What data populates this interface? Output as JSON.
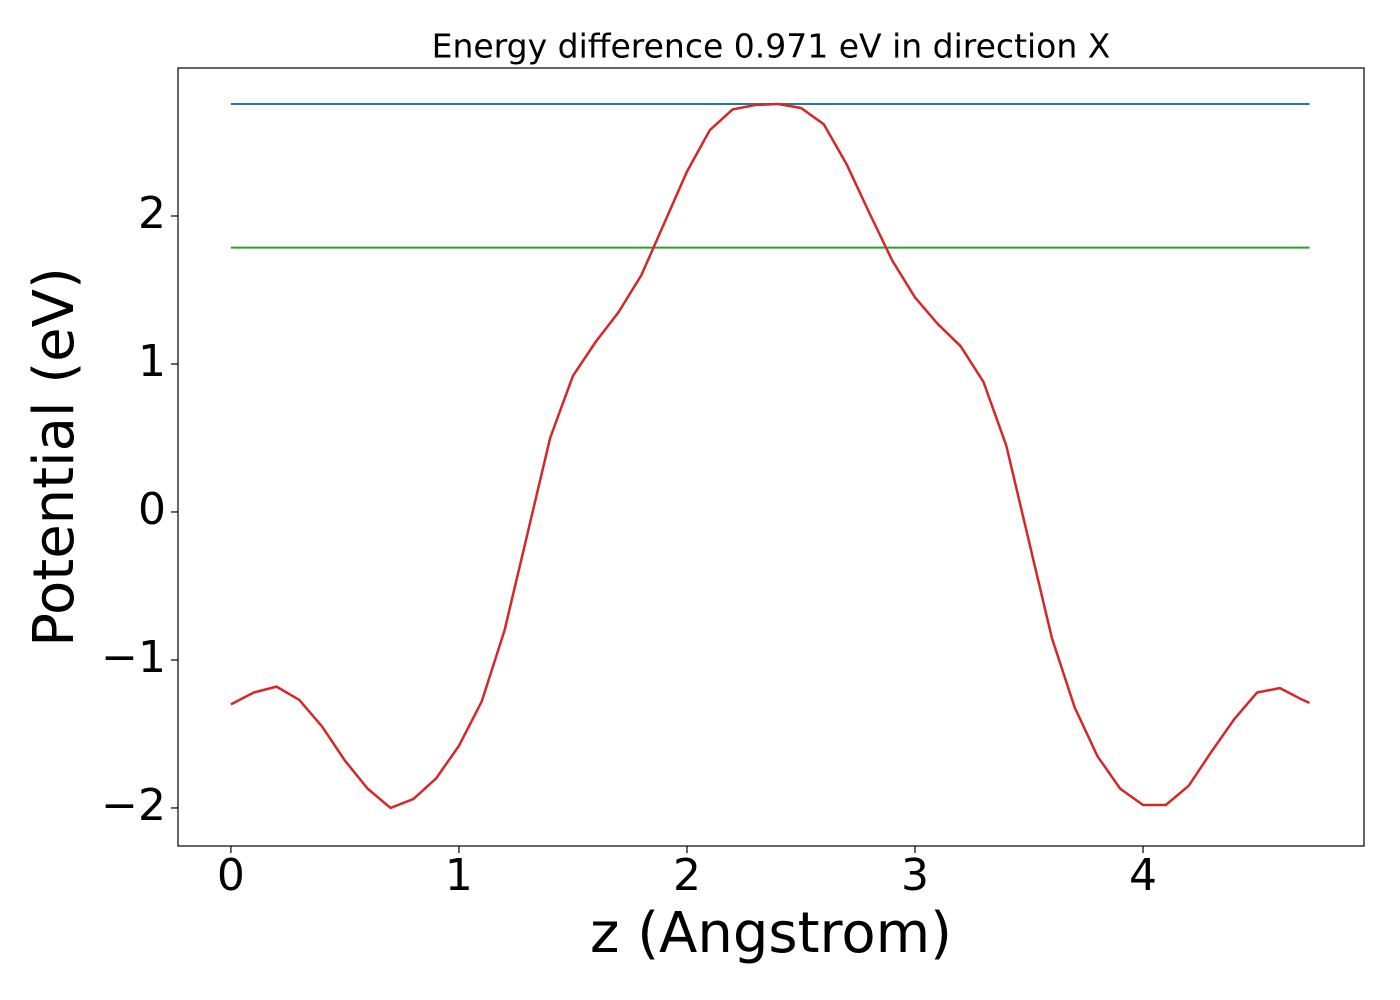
{
  "chart_data": {
    "type": "line",
    "title": "Energy difference 0.971 eV in direction X",
    "xlabel": "z (Angstrom)",
    "ylabel": "Potential (eV)",
    "xlim": [
      -0.232,
      4.969
    ],
    "ylim": [
      -2.257,
      3.0
    ],
    "xticks": [
      0,
      1,
      2,
      3,
      4
    ],
    "yticks": [
      {
        "value": -2,
        "label": "−2"
      },
      {
        "value": -1,
        "label": "−1"
      },
      0,
      1,
      2
    ],
    "series": [
      {
        "color": "#1f77b4",
        "x": [
          0,
          4.73
        ],
        "values": [
          2.757,
          2.757
        ]
      },
      {
        "color": "#2ca02c",
        "x": [
          0,
          4.73
        ],
        "values": [
          1.786,
          1.786
        ]
      },
      {
        "color": "#d62728",
        "x": [
          0,
          0.1,
          0.2,
          0.3,
          0.4,
          0.5,
          0.6,
          0.7,
          0.8,
          0.9,
          1.0,
          1.1,
          1.2,
          1.3,
          1.4,
          1.5,
          1.6,
          1.7,
          1.8,
          1.9,
          2.0,
          2.1,
          2.2,
          2.3,
          2.4,
          2.5,
          2.6,
          2.7,
          2.8,
          2.9,
          3.0,
          3.1,
          3.2,
          3.3,
          3.4,
          3.5,
          3.6,
          3.7,
          3.8,
          3.9,
          4.0,
          4.1,
          4.2,
          4.3,
          4.4,
          4.5,
          4.6,
          4.7,
          4.73
        ],
        "values": [
          -1.3,
          -1.22,
          -1.18,
          -1.27,
          -1.45,
          -1.68,
          -1.87,
          -2.0,
          -1.94,
          -1.8,
          -1.58,
          -1.28,
          -0.8,
          -0.15,
          0.5,
          0.92,
          1.15,
          1.35,
          1.6,
          1.95,
          2.3,
          2.58,
          2.72,
          2.75,
          2.757,
          2.73,
          2.62,
          2.35,
          2.02,
          1.7,
          1.45,
          1.27,
          1.12,
          0.88,
          0.45,
          -0.2,
          -0.85,
          -1.32,
          -1.65,
          -1.87,
          -1.98,
          -1.98,
          -1.85,
          -1.62,
          -1.4,
          -1.22,
          -1.19,
          -1.27,
          -1.29
        ]
      }
    ]
  }
}
